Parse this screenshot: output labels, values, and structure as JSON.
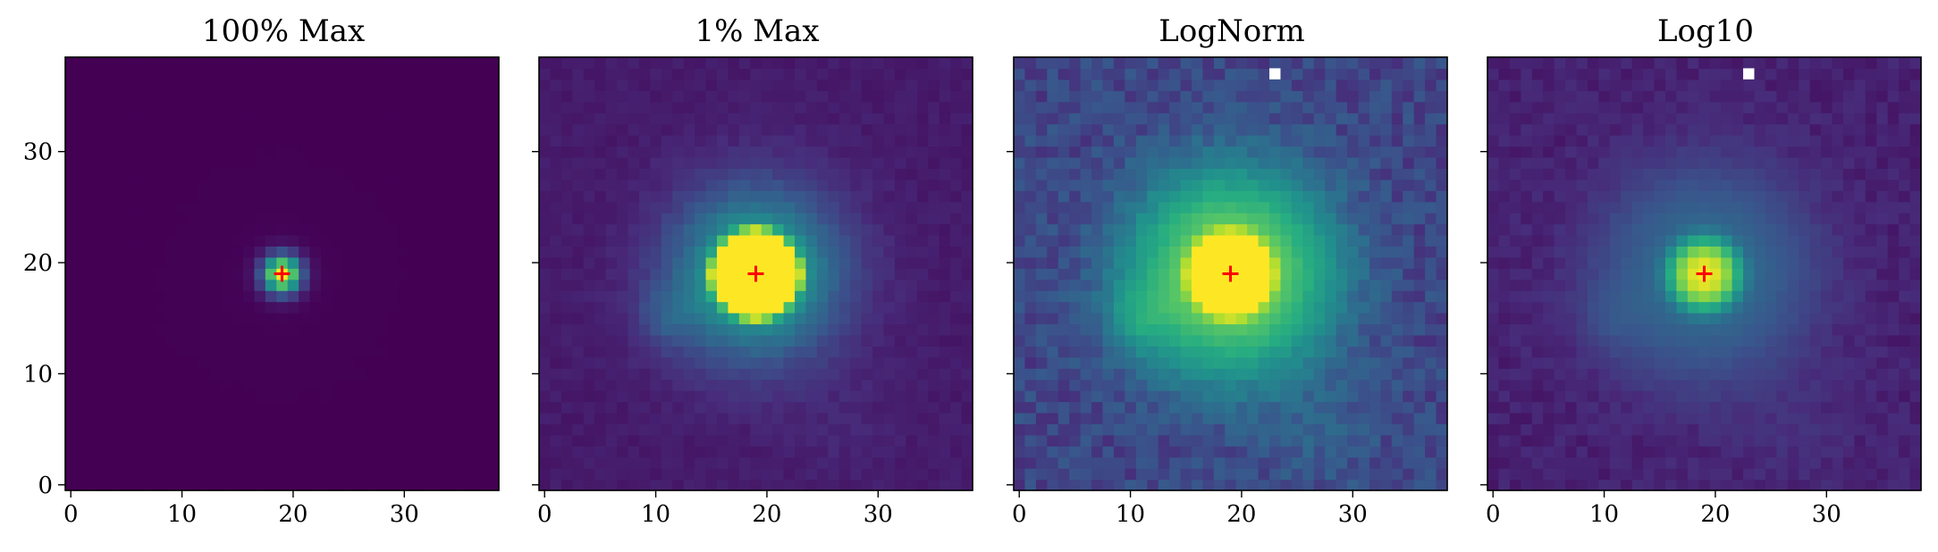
{
  "figure": {
    "panel_titles": [
      "100% Max",
      "1% Max",
      "LogNorm",
      "Log10"
    ]
  },
  "chart_data": [
    {
      "type": "heatmap",
      "title": "100% Max",
      "colormap": "viridis",
      "xlim": [
        -0.5,
        38.5
      ],
      "ylim": [
        -0.5,
        38.5
      ],
      "xticks": [
        0,
        10,
        20,
        30
      ],
      "yticks": [
        0,
        10,
        20,
        30
      ],
      "y_tick_labels_visible": true,
      "grid_size": [
        39,
        39
      ],
      "source": {
        "x": 19,
        "y": 19
      },
      "marker": {
        "x": 19,
        "y": 19,
        "symbol": "+",
        "color": "#ff0000"
      },
      "masked_pixels": []
    },
    {
      "type": "heatmap",
      "title": "1% Max",
      "colormap": "viridis",
      "xlim": [
        -0.5,
        38.5
      ],
      "ylim": [
        -0.5,
        38.5
      ],
      "xticks": [
        0,
        10,
        20,
        30
      ],
      "yticks": [
        0,
        10,
        20,
        30
      ],
      "y_tick_labels_visible": false,
      "grid_size": [
        39,
        39
      ],
      "source": {
        "x": 19,
        "y": 19
      },
      "marker": {
        "x": 19,
        "y": 19,
        "symbol": "+",
        "color": "#ff0000"
      },
      "masked_pixels": []
    },
    {
      "type": "heatmap",
      "title": "LogNorm",
      "colormap": "viridis",
      "xlim": [
        -0.5,
        38.5
      ],
      "ylim": [
        -0.5,
        38.5
      ],
      "xticks": [
        0,
        10,
        20,
        30
      ],
      "yticks": [
        0,
        10,
        20,
        30
      ],
      "y_tick_labels_visible": false,
      "grid_size": [
        39,
        39
      ],
      "source": {
        "x": 19,
        "y": 19
      },
      "marker": {
        "x": 19,
        "y": 19,
        "symbol": "+",
        "color": "#ff0000"
      },
      "masked_pixels": [
        {
          "x": 23,
          "y": 37,
          "color": "#ffffff"
        }
      ]
    },
    {
      "type": "heatmap",
      "title": "Log10",
      "colormap": "viridis",
      "xlim": [
        -0.5,
        38.5
      ],
      "ylim": [
        -0.5,
        38.5
      ],
      "xticks": [
        0,
        10,
        20,
        30
      ],
      "yticks": [
        0,
        10,
        20,
        30
      ],
      "y_tick_labels_visible": false,
      "grid_size": [
        39,
        39
      ],
      "source": {
        "x": 19,
        "y": 19
      },
      "marker": {
        "x": 19,
        "y": 19,
        "symbol": "+",
        "color": "#ff0000"
      },
      "masked_pixels": [
        {
          "x": 23,
          "y": 37,
          "color": "#ffffff"
        }
      ]
    }
  ]
}
